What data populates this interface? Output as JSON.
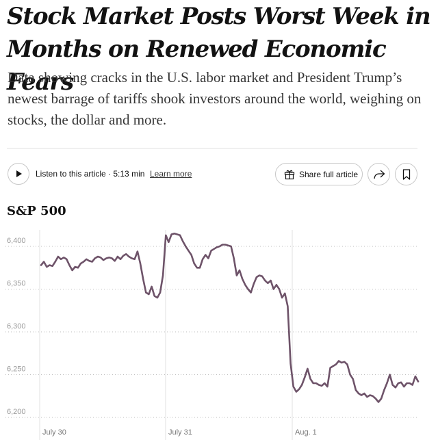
{
  "article": {
    "headline": "Stock Market Posts Worst Week in Months on Renewed Economic Fears",
    "summary": "Data showing cracks in the U.S. labor market and President Trump’s newest barrage of tariffs shook investors around the world, weighing on stocks, the dollar and more."
  },
  "toolbar": {
    "listen_label": "Listen to this article · 5:13 min",
    "learn_more": "Learn more",
    "share_label": "Share full article",
    "icons": [
      "play-icon",
      "gift-icon",
      "share-arrow-icon",
      "bookmark-icon"
    ]
  },
  "chart_title": "S&P 500",
  "chart_data": {
    "type": "line",
    "title": "S&P 500",
    "xlabel": "",
    "ylabel": "",
    "x_ticks": [
      "July 30",
      "July 31",
      "Aug. 1"
    ],
    "y_ticks": [
      "6,400",
      "6,350",
      "6,300",
      "6,250",
      "6,200"
    ],
    "ylim": [
      6200,
      6400
    ],
    "grid": "horizontal dotted",
    "line_color": "#6e5369",
    "series": [
      {
        "values": [
          6378,
          6382,
          6376,
          6378,
          6377,
          6382,
          6388,
          6385,
          6387,
          6385,
          6378,
          6372,
          6376,
          6375,
          6380,
          6382,
          6385,
          6383,
          6382,
          6386,
          6388,
          6387,
          6384,
          6386,
          6387,
          6386,
          6383,
          6388,
          6385,
          6389,
          6391,
          6388,
          6386,
          6385,
          6394,
          6380,
          6362,
          6346,
          6344,
          6353,
          6342,
          6340,
          6346,
          6366,
          6413,
          6405,
          6414,
          6415,
          6414,
          6413,
          6406,
          6400,
          6395,
          6390,
          6380,
          6375,
          6375,
          6385,
          6390,
          6386,
          6395,
          6397,
          6399,
          6400,
          6402,
          6402,
          6401,
          6400,
          6386,
          6366,
          6372,
          6362,
          6355,
          6350,
          6346,
          6356,
          6364,
          6366,
          6365,
          6360,
          6357,
          6360,
          6350,
          6355,
          6350,
          6340,
          6345,
          6330,
          6263,
          6236,
          6230,
          6233,
          6238,
          6247,
          6257,
          6245,
          6240,
          6240,
          6238,
          6237,
          6240,
          6236,
          6258,
          6260,
          6262,
          6266,
          6264,
          6265,
          6262,
          6250,
          6245,
          6232,
          6228,
          6226,
          6228,
          6224,
          6226,
          6225,
          6222,
          6218,
          6222,
          6232,
          6240,
          6250,
          6238,
          6235,
          6240,
          6241,
          6236,
          6240,
          6240,
          6238,
          6248,
          6242
        ]
      }
    ]
  }
}
